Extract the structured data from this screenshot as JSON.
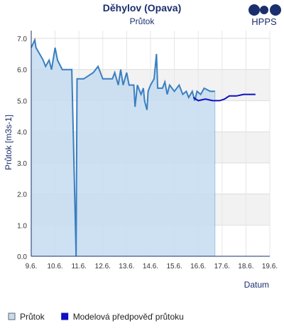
{
  "chart_data": {
    "type": "line",
    "title": "Děhylov (Opava)",
    "subtitle": "Průtok",
    "logo": "HPPS",
    "y_label": "Průtok [m3s-1]",
    "x_label": "Datum",
    "xlim": [
      9,
      19
    ],
    "ylim": [
      0,
      7.25
    ],
    "xticks": [
      {
        "value": 9,
        "label": "9.6."
      },
      {
        "value": 10,
        "label": "10.6."
      },
      {
        "value": 11,
        "label": "11.6."
      },
      {
        "value": 12,
        "label": "12.6."
      },
      {
        "value": 13,
        "label": "13.6."
      },
      {
        "value": 14,
        "label": "14.6."
      },
      {
        "value": 15,
        "label": "15.6."
      },
      {
        "value": 16,
        "label": "16.6."
      },
      {
        "value": 17,
        "label": "17.6."
      },
      {
        "value": 18,
        "label": "18.6."
      },
      {
        "value": 19,
        "label": "19.6."
      }
    ],
    "yticks": [
      {
        "value": 0,
        "label": "0.0"
      },
      {
        "value": 1,
        "label": "1.0"
      },
      {
        "value": 2,
        "label": "2.0"
      },
      {
        "value": 3,
        "label": "3.0"
      },
      {
        "value": 4,
        "label": "4.0"
      },
      {
        "value": 5,
        "label": "5.0"
      },
      {
        "value": 6,
        "label": "6.0"
      },
      {
        "value": 7,
        "label": "7.0"
      }
    ],
    "grid": true,
    "series": [
      {
        "name": "Průtok",
        "color": "#3a7fc1",
        "fill": "#c6dcf0",
        "x": [
          9.0,
          9.15,
          9.2,
          9.35,
          9.5,
          9.6,
          9.75,
          9.85,
          10.0,
          10.1,
          10.3,
          10.5,
          10.7,
          10.88,
          10.92,
          11.2,
          11.6,
          11.8,
          12.0,
          12.4,
          12.5,
          12.65,
          12.75,
          12.85,
          13.0,
          13.1,
          13.3,
          13.35,
          13.45,
          13.6,
          13.7,
          13.75,
          13.85,
          13.9,
          14.0,
          14.15,
          14.25,
          14.3,
          14.5,
          14.6,
          14.7,
          14.8,
          15.0,
          15.2,
          15.35,
          15.5,
          15.6,
          15.75,
          15.85,
          15.95,
          16.1,
          16.25,
          16.5,
          16.7
        ],
        "values": [
          6.7,
          6.95,
          6.7,
          6.5,
          6.3,
          6.1,
          6.3,
          6.0,
          6.7,
          6.3,
          6.0,
          6.0,
          6.0,
          0,
          5.7,
          5.7,
          5.9,
          6.1,
          5.7,
          5.7,
          5.9,
          5.5,
          6.0,
          5.5,
          5.9,
          5.5,
          5.5,
          4.8,
          5.5,
          5.2,
          5.4,
          5.0,
          4.7,
          5.3,
          5.5,
          5.7,
          6.5,
          5.4,
          5.4,
          5.6,
          5.2,
          5.5,
          5.3,
          5.5,
          5.2,
          5.3,
          5.1,
          5.3,
          5.0,
          5.3,
          5.2,
          5.4,
          5.3,
          5.3
        ]
      },
      {
        "name": "Modelová předpověď průtoku",
        "color": "#1010c0",
        "x": [
          15.8,
          16.0,
          16.3,
          16.6,
          16.9,
          17.1,
          17.3,
          17.6,
          17.9,
          18.2,
          18.4
        ],
        "values": [
          5.1,
          5.0,
          5.05,
          5.0,
          5.0,
          5.05,
          5.15,
          5.15,
          5.2,
          5.2,
          5.2
        ]
      }
    ]
  }
}
